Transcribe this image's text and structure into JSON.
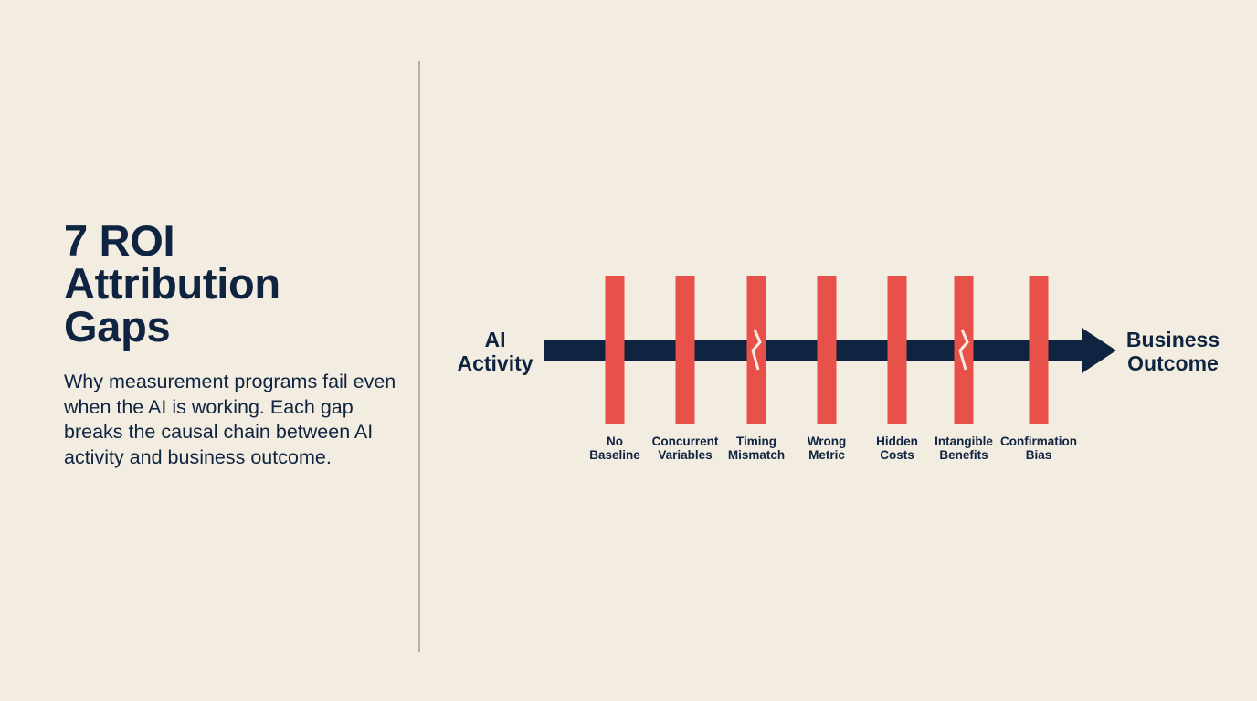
{
  "colors": {
    "background": "#F3ECE0",
    "navy": "#0E2440",
    "red": "#E8504A",
    "divider": "#B9B0A4"
  },
  "left": {
    "title_lines": [
      "7 ROI",
      "Attribution",
      "Gaps"
    ],
    "subtitle": "Why measurement programs fail even when the AI is working. Each gap breaks the causal chain between AI activity and business outcome."
  },
  "diagram": {
    "start": {
      "line1": "AI",
      "line2": "Activity"
    },
    "end": {
      "line1": "Business",
      "line2": "Outcome"
    },
    "gaps": [
      {
        "line1": "No",
        "line2": "Baseline",
        "breaks_chain": false
      },
      {
        "line1": "Concurrent",
        "line2": "Variables",
        "breaks_chain": false
      },
      {
        "line1": "Timing",
        "line2": "Mismatch",
        "breaks_chain": true
      },
      {
        "line1": "Wrong",
        "line2": "Metric",
        "breaks_chain": false
      },
      {
        "line1": "Hidden",
        "line2": "Costs",
        "breaks_chain": false
      },
      {
        "line1": "Intangible",
        "line2": "Benefits",
        "breaks_chain": true
      },
      {
        "line1": "Confirmation",
        "line2": "Bias",
        "breaks_chain": false
      }
    ]
  }
}
